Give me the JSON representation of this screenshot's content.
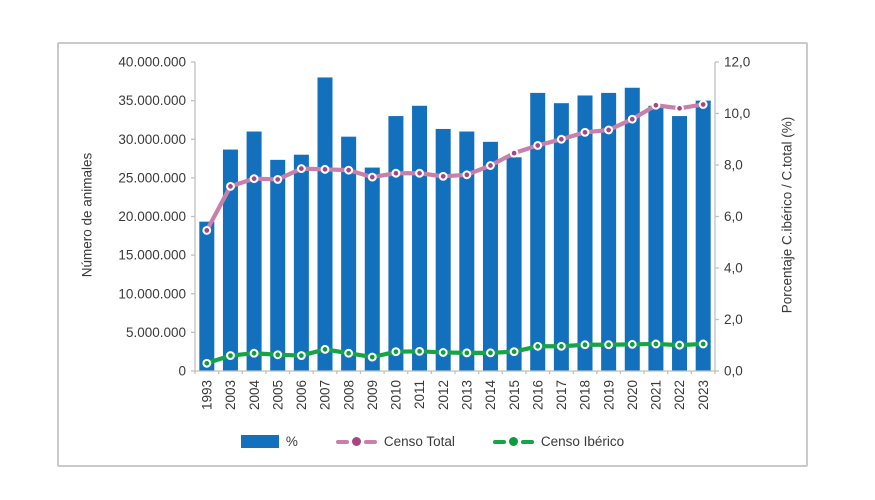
{
  "page": {
    "background": "#ffffff",
    "panel_border_color": "#c9caca"
  },
  "chart_data": {
    "type": "bar",
    "subtype": "combo-bar-and-two-lines",
    "title": "",
    "grid": "off",
    "categories": [
      "1993",
      "2003",
      "2004",
      "2005",
      "2006",
      "2007",
      "2008",
      "2009",
      "2010",
      "2011",
      "2012",
      "2013",
      "2014",
      "2015",
      "2016",
      "2017",
      "2018",
      "2019",
      "2020",
      "2021",
      "2022",
      "2023"
    ],
    "series": [
      {
        "name": "%",
        "type": "bar",
        "axis": "right",
        "color": "#1270bc",
        "values": [
          5.8,
          8.6,
          9.3,
          8.2,
          8.4,
          11.4,
          9.1,
          7.9,
          9.9,
          10.3,
          9.4,
          9.3,
          8.9,
          8.3,
          10.8,
          10.4,
          10.7,
          10.8,
          11.0,
          10.3,
          9.9,
          10.5
        ]
      },
      {
        "name": "Censo Total",
        "type": "line",
        "axis": "left",
        "color": "#c87fa9",
        "marker_color": "#a74583",
        "values": [
          18200000,
          23900000,
          24900000,
          24800000,
          26200000,
          26100000,
          26000000,
          25100000,
          25600000,
          25600000,
          25200000,
          25400000,
          26600000,
          28200000,
          29200000,
          30000000,
          30900000,
          31200000,
          32600000,
          34400000,
          34000000,
          34500000
        ]
      },
      {
        "name": "Censo Ibérico",
        "type": "line",
        "axis": "left",
        "color": "#17a347",
        "marker_color": "#0d9c3b",
        "values": [
          1000000,
          2000000,
          2300000,
          2100000,
          2000000,
          2800000,
          2300000,
          1800000,
          2500000,
          2550000,
          2400000,
          2350000,
          2350000,
          2500000,
          3200000,
          3200000,
          3400000,
          3400000,
          3450000,
          3500000,
          3350000,
          3500000
        ]
      }
    ],
    "axes": {
      "left": {
        "title": "Número de animales",
        "min": 0,
        "max": 40000000,
        "ticks": [
          "0",
          "5.000.000",
          "10.000.000",
          "15.000.000",
          "20.000.000",
          "25.000.000",
          "30.000.000",
          "35.000.000",
          "40.000.000"
        ]
      },
      "right": {
        "title": "Porcentaje C.ibérico / C.total (%)",
        "min": 0,
        "max": 12,
        "ticks": [
          "0,0",
          "2,0",
          "4,0",
          "6,0",
          "8,0",
          "10,0",
          "12,0"
        ]
      },
      "x": {
        "label_rotation_deg": -90
      }
    },
    "legend": {
      "position": "bottom",
      "items": [
        {
          "label": "%"
        },
        {
          "label": "Censo Total"
        },
        {
          "label": "Censo Ibérico"
        }
      ]
    },
    "style": {
      "text_color": "#3a3a3a",
      "axis_color": "#bfbfbf"
    }
  }
}
